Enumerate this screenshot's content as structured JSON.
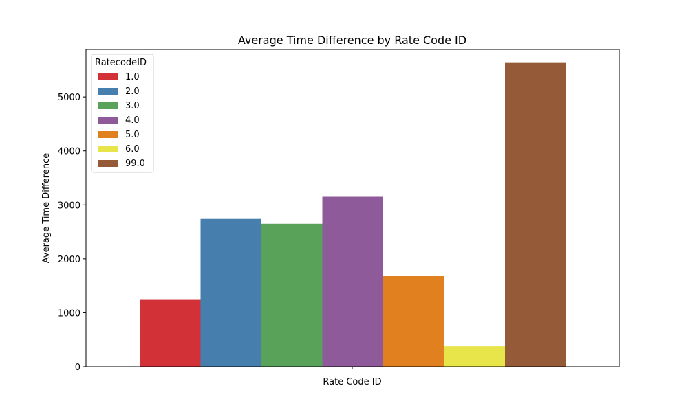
{
  "chart_data": {
    "type": "bar",
    "title": "Average Time Difference by Rate Code ID",
    "xlabel": "Rate Code ID",
    "ylabel": "Average Time Difference",
    "ylim": [
      0,
      5880
    ],
    "yticks": [
      0,
      1000,
      2000,
      3000,
      4000,
      5000
    ],
    "grid": false,
    "legend": {
      "title": "RatecodeID",
      "placement": "top-left"
    },
    "series": [
      {
        "name": "1.0",
        "value": 1240,
        "color": "#d23237"
      },
      {
        "name": "2.0",
        "value": 2740,
        "color": "#467fad"
      },
      {
        "name": "3.0",
        "value": 2650,
        "color": "#58a359"
      },
      {
        "name": "4.0",
        "value": 3150,
        "color": "#8f5a9a"
      },
      {
        "name": "5.0",
        "value": 1680,
        "color": "#e0801f"
      },
      {
        "name": "6.0",
        "value": 380,
        "color": "#e8e54a"
      },
      {
        "name": "99.0",
        "value": 5630,
        "color": "#955b38"
      }
    ]
  }
}
